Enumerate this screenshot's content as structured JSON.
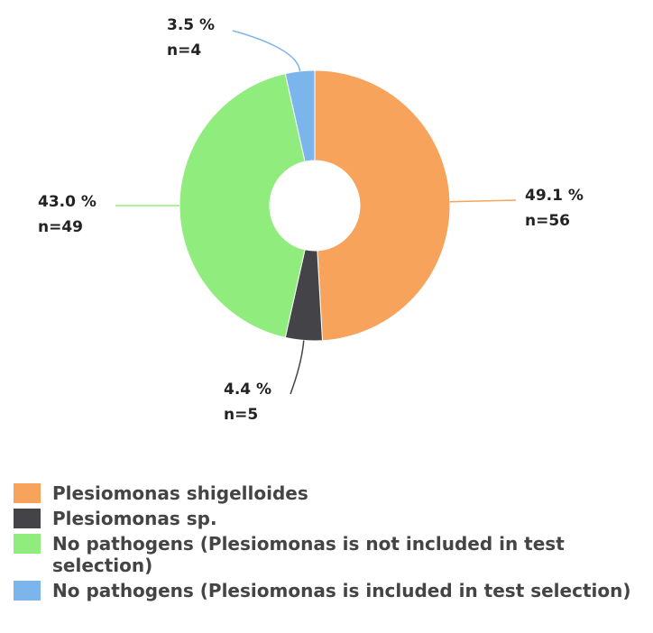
{
  "chart_data": {
    "type": "donut",
    "categories": [
      "Plesiomonas shigelloides",
      "Plesiomonas sp.",
      "No pathogens (Plesiomonas is not included in test selection)",
      "No pathogens (Plesiomonas is included in test selection)"
    ],
    "values": [
      49.1,
      4.4,
      43.0,
      3.5
    ],
    "value_labels": [
      "49.1 %",
      "4.4 %",
      "43.0 %",
      "3.5 %"
    ],
    "count_labels": [
      "n=56",
      "n=5",
      "n=49",
      "n=4"
    ],
    "colors": [
      "#f7a35c",
      "#434348",
      "#90ed7d",
      "#7cb5ec"
    ]
  }
}
